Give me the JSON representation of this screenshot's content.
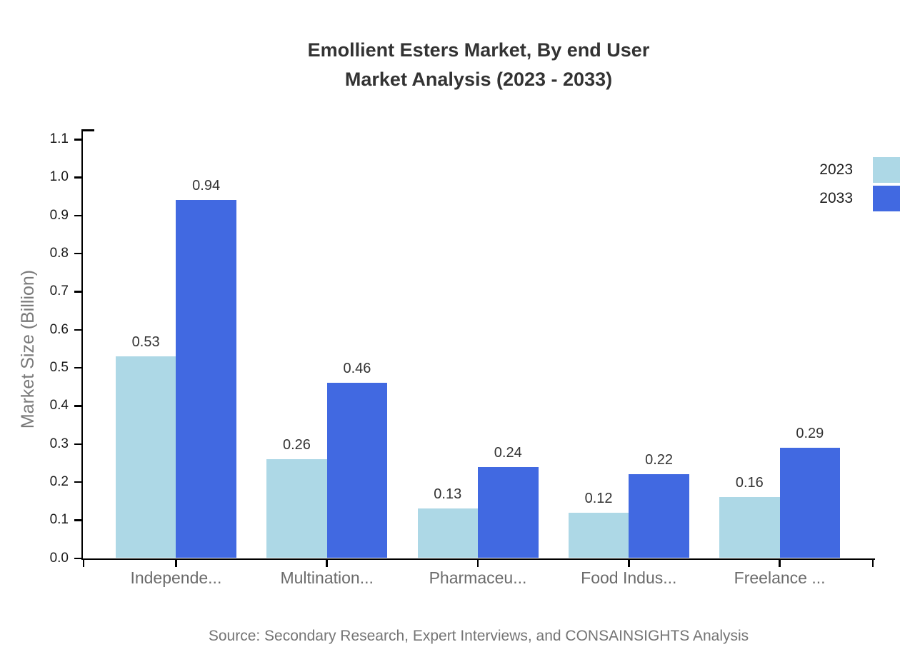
{
  "title": {
    "line1": "Emollient Esters Market, By end User",
    "line2": "Market Analysis (2023 - 2033)"
  },
  "source": "Source: Secondary Research, Expert Interviews, and CONSAINSIGHTS Analysis",
  "chart_data": {
    "type": "bar",
    "categories": [
      "Independe...",
      "Multination...",
      "Pharmaceu...",
      "Food Indus...",
      "Freelance ..."
    ],
    "series": [
      {
        "name": "2023",
        "color": "#ADD8E6",
        "values": [
          0.53,
          0.26,
          0.13,
          0.12,
          0.16
        ]
      },
      {
        "name": "2033",
        "color": "#4169E1",
        "values": [
          0.94,
          0.46,
          0.24,
          0.22,
          0.29
        ]
      }
    ],
    "ylabel": "Market Size (Billion)",
    "ylim": [
      0.0,
      1.1
    ],
    "ytick_step": 0.1,
    "ytick_labels": [
      "0.0",
      "0.1",
      "0.2",
      "0.3",
      "0.4",
      "0.5",
      "0.6",
      "0.7",
      "0.8",
      "0.9",
      "1.0",
      "1.1"
    ],
    "value_labels": true,
    "grid": false,
    "legend_position": "top-right"
  }
}
